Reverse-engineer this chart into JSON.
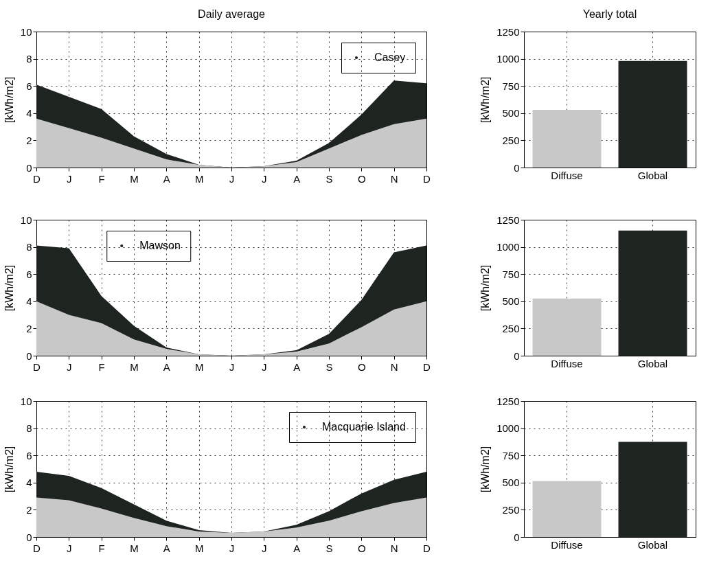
{
  "chart_data": [
    {
      "type": "area",
      "title": "Daily average",
      "ylabel": "[kWh/m2]",
      "categories": [
        "D",
        "J",
        "F",
        "M",
        "A",
        "M",
        "J",
        "J",
        "A",
        "S",
        "O",
        "N",
        "D"
      ],
      "ylim": [
        0,
        10
      ],
      "yticks": [
        0,
        2,
        4,
        6,
        8,
        10
      ],
      "grid": true,
      "legend": "top right",
      "series": [
        {
          "name": "Casey",
          "color": "#1e2420",
          "values": [
            6.1,
            5.2,
            4.3,
            2.3,
            1.0,
            0.2,
            0,
            0.1,
            0.5,
            1.8,
            3.9,
            6.4,
            6.2
          ]
        },
        {
          "color": "#c8c8c8",
          "values": [
            3.6,
            2.9,
            2.2,
            1.4,
            0.6,
            0.2,
            0,
            0.1,
            0.4,
            1.4,
            2.4,
            3.2,
            3.6
          ]
        }
      ]
    },
    {
      "type": "bar",
      "title": "Yearly total",
      "ylabel": "[kWh/m2]",
      "categories": [
        "Diffuse",
        "Global"
      ],
      "values": [
        530,
        980
      ],
      "colors": [
        "#c8c8c8",
        "#1e2420"
      ],
      "ylim": [
        0,
        1250
      ],
      "yticks": [
        0,
        250,
        500,
        750,
        1000,
        1250
      ],
      "grid": true
    },
    {
      "type": "area",
      "ylabel": "[kWh/m2]",
      "categories": [
        "D",
        "J",
        "F",
        "M",
        "A",
        "M",
        "J",
        "J",
        "A",
        "S",
        "O",
        "N",
        "D"
      ],
      "ylim": [
        0,
        10
      ],
      "yticks": [
        0,
        2,
        4,
        6,
        8,
        10
      ],
      "grid": true,
      "legend": "top left",
      "series": [
        {
          "name": "Mawson",
          "color": "#1e2420",
          "values": [
            8.1,
            7.9,
            4.4,
            2.2,
            0.6,
            0.1,
            0,
            0.1,
            0.4,
            1.6,
            4.1,
            7.6,
            8.1
          ]
        },
        {
          "color": "#c8c8c8",
          "values": [
            4.0,
            3.0,
            2.4,
            1.2,
            0.5,
            0.1,
            0,
            0.1,
            0.3,
            0.9,
            2.1,
            3.4,
            4.0
          ]
        }
      ]
    },
    {
      "type": "bar",
      "ylabel": "[kWh/m2]",
      "categories": [
        "Diffuse",
        "Global"
      ],
      "values": [
        525,
        1150
      ],
      "colors": [
        "#c8c8c8",
        "#1e2420"
      ],
      "ylim": [
        0,
        1250
      ],
      "yticks": [
        0,
        250,
        500,
        750,
        1000,
        1250
      ],
      "grid": true
    },
    {
      "type": "area",
      "ylabel": "[kWh/m2]",
      "categories": [
        "D",
        "J",
        "F",
        "M",
        "A",
        "M",
        "J",
        "J",
        "A",
        "S",
        "O",
        "N",
        "D"
      ],
      "ylim": [
        0,
        10
      ],
      "yticks": [
        0,
        2,
        4,
        6,
        8,
        10
      ],
      "grid": true,
      "legend": "top right",
      "series": [
        {
          "name": "Macquarie Island",
          "color": "#1e2420",
          "values": [
            4.8,
            4.5,
            3.6,
            2.4,
            1.2,
            0.5,
            0.3,
            0.4,
            0.9,
            1.9,
            3.2,
            4.2,
            4.8
          ]
        },
        {
          "color": "#c8c8c8",
          "values": [
            2.9,
            2.7,
            2.1,
            1.4,
            0.8,
            0.4,
            0.3,
            0.4,
            0.7,
            1.2,
            1.9,
            2.5,
            2.9
          ]
        }
      ]
    },
    {
      "type": "bar",
      "ylabel": "[kWh/m2]",
      "categories": [
        "Diffuse",
        "Global"
      ],
      "values": [
        515,
        875
      ],
      "colors": [
        "#c8c8c8",
        "#1e2420"
      ],
      "ylim": [
        0,
        1250
      ],
      "yticks": [
        0,
        250,
        500,
        750,
        1000,
        1250
      ],
      "grid": true
    }
  ]
}
